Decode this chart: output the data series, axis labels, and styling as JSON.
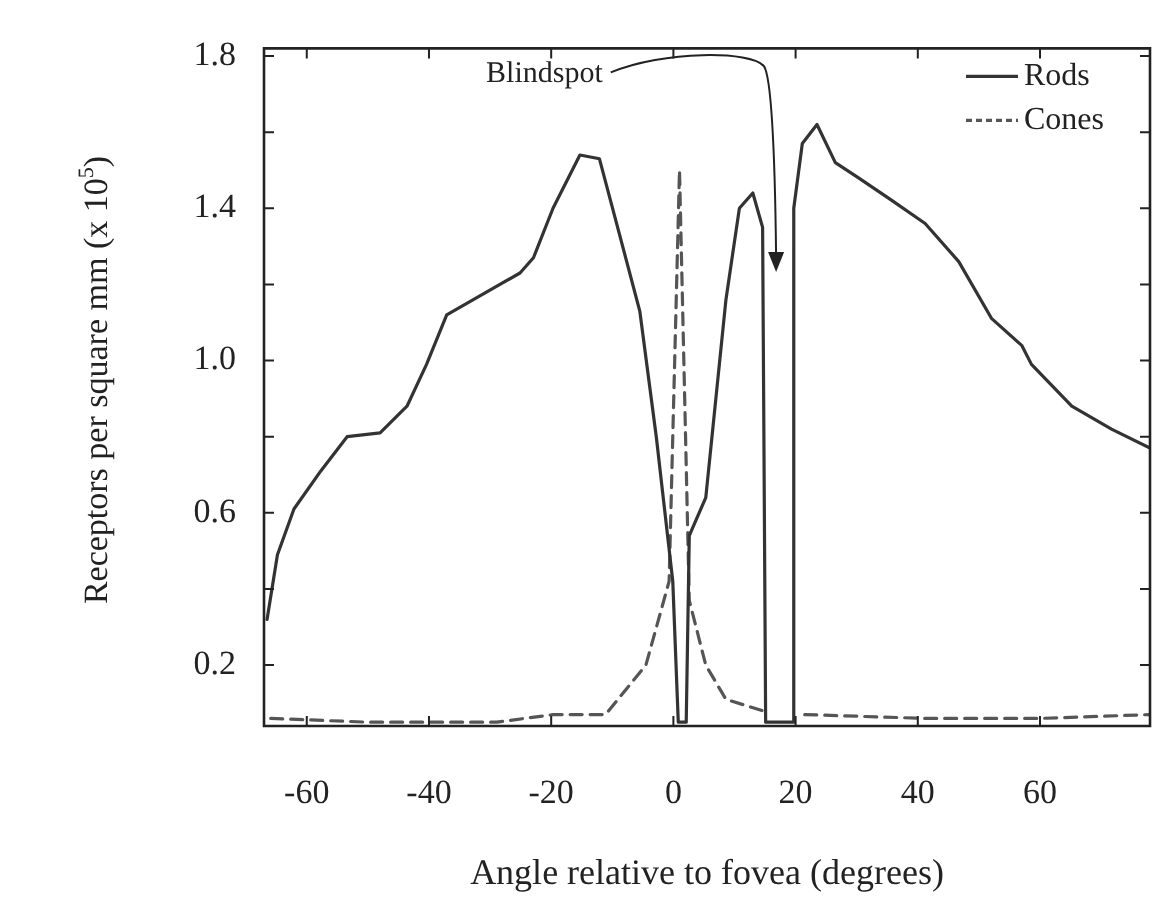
{
  "chart_data": {
    "type": "line",
    "xlabel": "Angle relative to fovea (degrees)",
    "ylabel": "Receptors per square mm (x 10$^{5}$)",
    "xlim": [
      -67,
      78
    ],
    "xticks": [
      -60,
      -40,
      -20,
      0,
      20,
      40,
      60
    ],
    "ylim": [
      0.04,
      1.82
    ],
    "yticks": [
      {
        "value": 0.2,
        "label": "0.2"
      },
      {
        "value": 0.4,
        "label": null
      },
      {
        "value": 0.6,
        "label": "0.6"
      },
      {
        "value": 0.8,
        "label": null
      },
      {
        "value": 1.0,
        "label": "1.0"
      },
      {
        "value": 1.2,
        "label": null
      },
      {
        "value": 1.4,
        "label": "1.4"
      },
      {
        "value": 1.6,
        "label": null
      },
      {
        "value": 1.8,
        "label": "1.8"
      }
    ],
    "grid": false,
    "legend": "top right",
    "marker": "none",
    "annotations": [
      "Blindspot"
    ],
    "series": [
      {
        "name": "Rods",
        "color": "#333333",
        "line_style": "solid",
        "x": [
          -66.5,
          -64.8,
          -62.1,
          -57.7,
          -53.4,
          -48.0,
          -43.6,
          -40.4,
          -37.1,
          -30.6,
          -25.1,
          -22.9,
          -19.7,
          -15.3,
          -12.1,
          -8.8,
          -5.5,
          -2.8,
          -0.1,
          0.8,
          2.1,
          2.6,
          5.3,
          8.6,
          10.8,
          13.0,
          14.6,
          15.1,
          19.5,
          19.7,
          21.1,
          23.5,
          26.5,
          30.3,
          35.8,
          41.2,
          46.7,
          52.1,
          57.0,
          58.6,
          65.2,
          71.7,
          78.0
        ],
        "values": [
          0.32,
          0.49,
          0.61,
          0.71,
          0.8,
          0.81,
          0.88,
          0.99,
          1.12,
          1.18,
          1.23,
          1.27,
          1.4,
          1.54,
          1.53,
          1.33,
          1.13,
          0.8,
          0.42,
          0.05,
          0.05,
          0.54,
          0.64,
          1.16,
          1.4,
          1.44,
          1.35,
          0.05,
          0.05,
          1.4,
          1.57,
          1.62,
          1.52,
          1.48,
          1.42,
          1.36,
          1.26,
          1.11,
          1.04,
          0.99,
          0.88,
          0.82,
          0.77
        ]
      },
      {
        "name": "Cones",
        "color": "#555555",
        "line_style": "dashed",
        "x": [
          -65.9,
          -50,
          -40,
          -28.9,
          -19.7,
          -11.1,
          -4.5,
          -0.7,
          1.0,
          2.6,
          5.3,
          8.6,
          14.6,
          17,
          21.5,
          41.2,
          60,
          78
        ],
        "values": [
          0.06,
          0.05,
          0.05,
          0.05,
          0.07,
          0.07,
          0.2,
          0.42,
          1.5,
          0.37,
          0.2,
          0.11,
          0.08,
          null,
          0.07,
          0.06,
          0.06,
          0.07
        ]
      }
    ]
  }
}
